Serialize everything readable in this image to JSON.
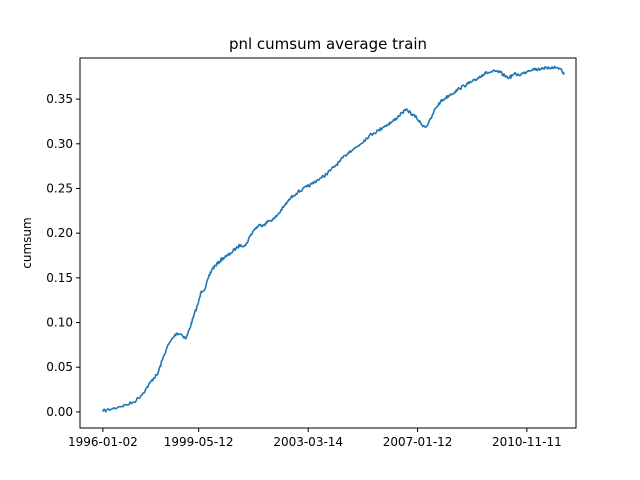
{
  "chart_data": {
    "type": "line",
    "title": "pnl cumsum average train",
    "xlabel": "",
    "ylabel": "cumsum",
    "grid": false,
    "legend": "none",
    "xlim": [
      "1995-03-15",
      "2012-08-01"
    ],
    "ylim": [
      -0.018,
      0.396
    ],
    "x_ticks": [
      "1996-01-02",
      "1999-05-12",
      "2003-03-14",
      "2007-01-12",
      "2010-11-11"
    ],
    "y_ticks": [
      "0.00",
      "0.05",
      "0.10",
      "0.15",
      "0.20",
      "0.25",
      "0.30",
      "0.35"
    ],
    "colors": {
      "series": "#1f77b4"
    },
    "series": [
      {
        "x": [
          "1996-01-02",
          "1996-04-15",
          "1996-08-01",
          "1996-11-01",
          "1997-02-01",
          "1997-05-01",
          "1997-07-01",
          "1997-09-01",
          "1997-10-15",
          "1997-12-01",
          "1998-02-01",
          "1998-04-01",
          "1998-06-01",
          "1998-08-01",
          "1998-10-01",
          "1998-12-01",
          "1999-01-15",
          "1999-03-01",
          "1999-05-01",
          "1999-06-15",
          "1999-08-01",
          "1999-09-15",
          "1999-11-01",
          "1999-12-15",
          "2000-02-01",
          "2000-03-15",
          "2000-05-01",
          "2000-07-01",
          "2000-09-01",
          "2000-11-01",
          "2001-01-01",
          "2001-03-01",
          "2001-05-01",
          "2001-07-01",
          "2001-09-01",
          "2001-11-01",
          "2002-01-01",
          "2002-03-01",
          "2002-05-01",
          "2002-07-01",
          "2002-09-01",
          "2002-11-01",
          "2003-01-01",
          "2003-03-01",
          "2003-05-01",
          "2003-07-01",
          "2003-09-01",
          "2003-11-01",
          "2004-01-01",
          "2004-03-01",
          "2004-05-01",
          "2004-07-01",
          "2004-09-01",
          "2004-11-01",
          "2005-01-01",
          "2005-03-01",
          "2005-05-01",
          "2005-07-01",
          "2005-09-01",
          "2005-11-01",
          "2006-01-01",
          "2006-03-01",
          "2006-05-01",
          "2006-07-01",
          "2006-09-01",
          "2006-11-01",
          "2007-01-01",
          "2007-03-01",
          "2007-05-01",
          "2007-07-01",
          "2007-09-01",
          "2007-11-01",
          "2008-01-01",
          "2008-03-01",
          "2008-05-01",
          "2008-07-01",
          "2008-09-01",
          "2008-10-15",
          "2008-12-01",
          "2009-01-15",
          "2009-03-01",
          "2009-04-15",
          "2009-06-01",
          "2009-08-01",
          "2009-10-01",
          "2009-12-01",
          "2010-02-01",
          "2010-04-01",
          "2010-06-01",
          "2010-08-01",
          "2010-10-01",
          "2010-12-01",
          "2011-02-01",
          "2011-04-01",
          "2011-06-01",
          "2011-08-01",
          "2011-10-01",
          "2011-12-01",
          "2012-01-15",
          "2012-03-01"
        ],
        "values": [
          0.001,
          0.003,
          0.006,
          0.008,
          0.011,
          0.018,
          0.025,
          0.033,
          0.038,
          0.042,
          0.058,
          0.072,
          0.081,
          0.088,
          0.087,
          0.082,
          0.093,
          0.105,
          0.12,
          0.135,
          0.138,
          0.15,
          0.16,
          0.164,
          0.168,
          0.172,
          0.174,
          0.178,
          0.183,
          0.187,
          0.186,
          0.197,
          0.205,
          0.209,
          0.21,
          0.214,
          0.216,
          0.222,
          0.229,
          0.236,
          0.242,
          0.246,
          0.249,
          0.252,
          0.255,
          0.259,
          0.262,
          0.266,
          0.271,
          0.276,
          0.281,
          0.287,
          0.292,
          0.295,
          0.299,
          0.304,
          0.309,
          0.312,
          0.315,
          0.319,
          0.322,
          0.325,
          0.33,
          0.335,
          0.338,
          0.333,
          0.329,
          0.322,
          0.319,
          0.328,
          0.34,
          0.347,
          0.351,
          0.355,
          0.358,
          0.362,
          0.365,
          0.367,
          0.369,
          0.371,
          0.374,
          0.377,
          0.379,
          0.38,
          0.381,
          0.38,
          0.376,
          0.374,
          0.378,
          0.377,
          0.379,
          0.382,
          0.384,
          0.383,
          0.385,
          0.384,
          0.386,
          0.385,
          0.384,
          0.378
        ]
      }
    ]
  }
}
